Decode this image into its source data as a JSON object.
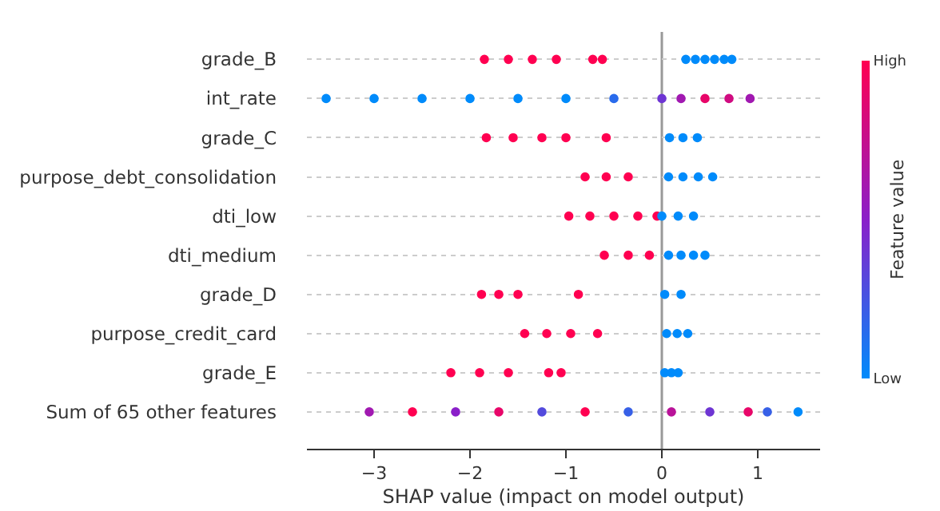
{
  "chart_data": {
    "type": "scatter",
    "orientation": "horizontal",
    "xlabel": "SHAP value (impact on model output)",
    "clabel": "Feature value",
    "categories": [
      "grade_B",
      "int_rate",
      "grade_C",
      "purpose_debt_consolidation",
      "dti_low",
      "dti_medium",
      "grade_D",
      "purpose_credit_card",
      "grade_E",
      "Sum of 65 other features"
    ],
    "xlim": [
      -3.7,
      1.65
    ],
    "xticks": [
      {
        "value": -3,
        "label": "−3"
      },
      {
        "value": -2,
        "label": "−2"
      },
      {
        "value": -1,
        "label": "−1"
      },
      0,
      1
    ],
    "clim": [
      0,
      1
    ],
    "cticks": [
      {
        "value": 0,
        "label": "Low"
      },
      {
        "value": 1,
        "label": "High"
      }
    ],
    "grid": "y",
    "legend": false,
    "marker": "circle",
    "ref_lines": [
      {
        "axis": "x",
        "value": 0,
        "color": "#999999"
      }
    ],
    "series": [
      {
        "values": [
          -1.85,
          -3.5,
          -1.83,
          -0.8,
          -0.97,
          -0.6,
          -1.88,
          -1.43,
          -2.2,
          -3.05
        ],
        "cvalues": [
          1,
          0,
          1,
          1,
          1,
          1,
          1,
          1,
          1,
          0.6
        ],
        "colors": [
          "#ff0051",
          "#008bfb",
          "#ff0051",
          "#ff0051",
          "#ff0051",
          "#ff0051",
          "#ff0051",
          "#ff0051",
          "#ff0051",
          "#a119b1"
        ]
      },
      {
        "values": [
          -1.6,
          -3.0,
          -1.55,
          -0.58,
          -0.75,
          -0.35,
          -1.7,
          -1.2,
          -1.9,
          -2.6
        ],
        "cvalues": [
          1,
          0,
          1,
          1,
          1,
          1,
          1,
          1,
          1,
          1
        ],
        "colors": [
          "#ff0051",
          "#008bfb",
          "#ff0051",
          "#ff0051",
          "#ff0051",
          "#ff0051",
          "#ff0051",
          "#ff0051",
          "#ff0051",
          "#ff0051"
        ]
      },
      {
        "values": [
          -1.35,
          -2.5,
          -1.25,
          -0.35,
          -0.5,
          -0.13,
          -1.5,
          -0.95,
          -1.6,
          -2.15
        ],
        "cvalues": [
          1,
          0,
          1,
          1,
          1,
          1,
          1,
          1,
          1,
          0.5
        ],
        "colors": [
          "#ff0051",
          "#008bfb",
          "#ff0051",
          "#ff0051",
          "#ff0051",
          "#ff0051",
          "#ff0051",
          "#ff0051",
          "#ff0051",
          "#8a1fc9"
        ]
      },
      {
        "values": [
          -1.1,
          -2.0,
          -1.0,
          0.07,
          -0.25,
          0.07,
          -0.87,
          -0.67,
          -1.18,
          -1.7
        ],
        "cvalues": [
          1,
          0,
          1,
          0,
          1,
          0,
          1,
          1,
          1,
          0.9
        ],
        "colors": [
          "#ff0051",
          "#008bfb",
          "#ff0051",
          "#008bfb",
          "#ff0051",
          "#008bfb",
          "#ff0051",
          "#ff0051",
          "#ff0051",
          "#e80669"
        ]
      },
      {
        "values": [
          -0.72,
          -1.5,
          -0.58,
          0.22,
          -0.05,
          0.2,
          0.03,
          0.05,
          -1.05,
          -1.25
        ],
        "cvalues": [
          1,
          0,
          1,
          0,
          1,
          0,
          0,
          0,
          1,
          0.3
        ],
        "colors": [
          "#ff0051",
          "#008bfb",
          "#ff0051",
          "#008bfb",
          "#ff0051",
          "#008bfb",
          "#008bfb",
          "#008bfb",
          "#ff0051",
          "#534add"
        ]
      },
      {
        "values": [
          -0.62,
          -1.0,
          0.08,
          0.38,
          0.0,
          0.33,
          0.2,
          0.16,
          0.03,
          -0.8
        ],
        "cvalues": [
          1,
          0,
          0,
          0,
          0,
          0,
          0,
          0,
          0,
          1
        ],
        "colors": [
          "#ff0051",
          "#008bfb",
          "#008bfb",
          "#008bfb",
          "#008bfb",
          "#008bfb",
          "#008bfb",
          "#008bfb",
          "#008bfb",
          "#ff0051"
        ]
      },
      {
        "values": [
          0.25,
          -0.5,
          0.22,
          0.53,
          0.17,
          0.45,
          null,
          0.27,
          0.1,
          -0.35
        ],
        "cvalues": [
          0,
          0.15,
          0,
          0,
          0,
          0,
          null,
          0,
          0,
          0.2
        ],
        "colors": [
          "#008bfb",
          "#296bec",
          "#008bfb",
          "#008bfb",
          "#008bfb",
          "#008bfb",
          null,
          "#008bfb",
          "#008bfb",
          "#3760e7"
        ]
      },
      {
        "values": [
          0.35,
          0.0,
          0.37,
          null,
          0.33,
          null,
          null,
          null,
          0.17,
          0.1
        ],
        "cvalues": [
          0,
          0.4,
          0,
          null,
          0,
          null,
          null,
          null,
          0,
          0.7
        ],
        "colors": [
          "#008bfb",
          "#6e35d3",
          "#008bfb",
          null,
          "#008bfb",
          null,
          null,
          null,
          "#008bfb",
          "#b91399"
        ]
      },
      {
        "values": [
          0.45,
          0.2,
          null,
          null,
          null,
          null,
          null,
          null,
          null,
          0.5
        ],
        "cvalues": [
          0,
          0.6,
          null,
          null,
          null,
          null,
          null,
          null,
          null,
          0.4
        ],
        "colors": [
          "#008bfb",
          "#a119b1",
          null,
          null,
          null,
          null,
          null,
          null,
          null,
          "#6e35d3"
        ]
      },
      {
        "values": [
          0.55,
          0.45,
          null,
          null,
          null,
          null,
          null,
          null,
          null,
          0.9
        ],
        "cvalues": [
          0,
          0.9,
          null,
          null,
          null,
          null,
          null,
          null,
          null,
          0.9
        ],
        "colors": [
          "#008bfb",
          "#e80669",
          null,
          null,
          null,
          null,
          null,
          null,
          null,
          "#e80669"
        ]
      },
      {
        "values": [
          0.65,
          0.7,
          null,
          null,
          null,
          null,
          null,
          null,
          null,
          1.1
        ],
        "cvalues": [
          0,
          0.8,
          null,
          null,
          null,
          null,
          null,
          null,
          null,
          0.2
        ],
        "colors": [
          "#008bfb",
          "#d00c81",
          null,
          null,
          null,
          null,
          null,
          null,
          null,
          "#3760e7"
        ]
      },
      {
        "values": [
          0.73,
          0.92,
          null,
          null,
          null,
          null,
          null,
          null,
          null,
          1.42
        ],
        "cvalues": [
          0,
          0.6,
          null,
          null,
          null,
          null,
          null,
          null,
          null,
          0
        ],
        "colors": [
          "#008bfb",
          "#a119b1",
          null,
          null,
          null,
          null,
          null,
          null,
          null,
          "#008bfb"
        ]
      }
    ]
  }
}
